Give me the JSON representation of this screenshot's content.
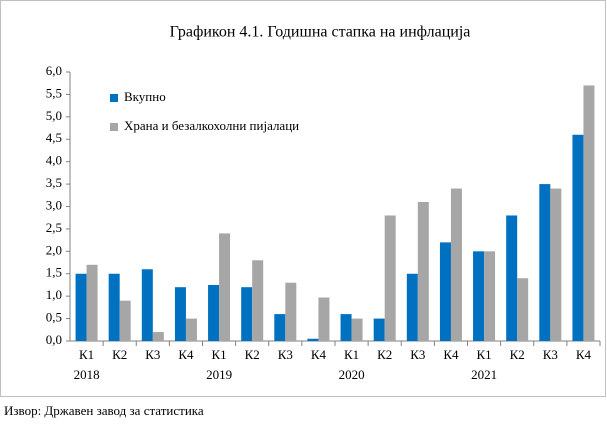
{
  "chart_data": {
    "type": "bar",
    "title": "Графикон 4.1. Годишна стапка на инфлација",
    "categories": [
      "К1",
      "К2",
      "К3",
      "К4",
      "К1",
      "К2",
      "К3",
      "К4",
      "К1",
      "К2",
      "К3",
      "К4",
      "К1",
      "К2",
      "К3",
      "К4"
    ],
    "year_labels": [
      "2018",
      "2019",
      "2020",
      "2021"
    ],
    "series": [
      {
        "name": "Вкупно",
        "color": "#0070c0",
        "values": [
          1.5,
          1.5,
          1.6,
          1.2,
          1.25,
          1.2,
          0.6,
          0.05,
          0.6,
          0.5,
          1.5,
          2.2,
          2.0,
          2.8,
          3.5,
          4.6
        ]
      },
      {
        "name": "Храна и безалкохолни пијалаци",
        "color": "#a6a6a6",
        "values": [
          1.7,
          0.9,
          0.2,
          0.5,
          2.4,
          1.8,
          1.3,
          0.97,
          0.5,
          2.8,
          3.1,
          3.4,
          2.0,
          1.4,
          3.4,
          5.7
        ]
      }
    ],
    "ylim": [
      0,
      6
    ],
    "yticks": [
      {
        "value": 0,
        "label": "0,0"
      },
      {
        "value": 0.5,
        "label": "0,5"
      },
      {
        "value": 1,
        "label": "1,0"
      },
      {
        "value": 1.5,
        "label": "1,5"
      },
      {
        "value": 2,
        "label": "2,0"
      },
      {
        "value": 2.5,
        "label": "2,5"
      },
      {
        "value": 3,
        "label": "3,0"
      },
      {
        "value": 3.5,
        "label": "3,5"
      },
      {
        "value": 4,
        "label": "4,0"
      },
      {
        "value": 4.5,
        "label": "4,5"
      },
      {
        "value": 5,
        "label": "5,0"
      },
      {
        "value": 5.5,
        "label": "5,5"
      },
      {
        "value": 6,
        "label": "6,0"
      }
    ],
    "source": "Извор: Државен завод за статистика"
  }
}
